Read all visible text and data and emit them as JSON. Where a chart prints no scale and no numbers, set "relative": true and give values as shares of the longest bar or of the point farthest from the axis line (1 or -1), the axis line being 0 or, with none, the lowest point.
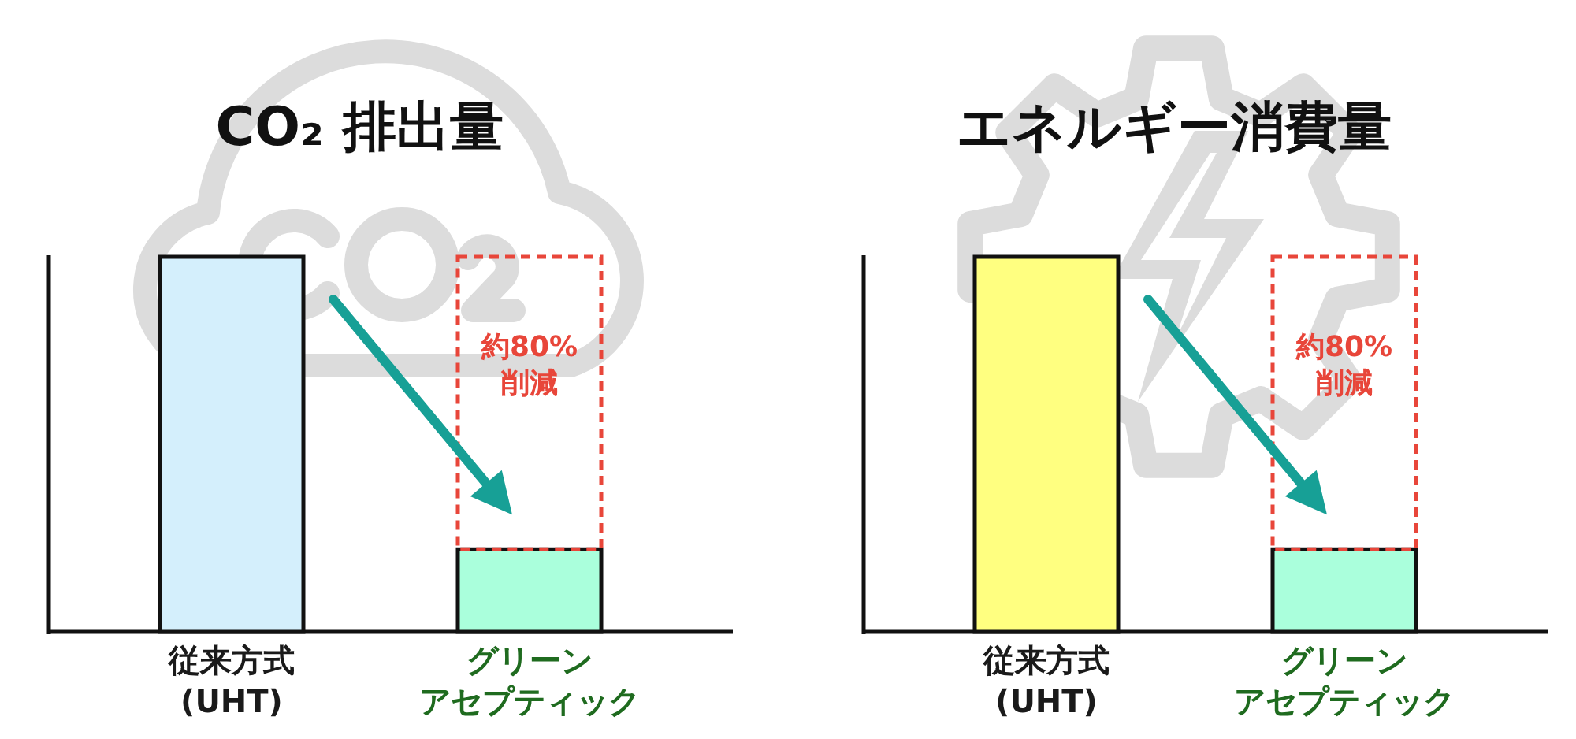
{
  "chart_data": [
    {
      "type": "bar",
      "title": "CO₂ 排出量",
      "categories": [
        "従来方式 (UHT)",
        "グリーンアセプティック"
      ],
      "values": [
        1,
        0.22
      ],
      "colors": [
        "#d4effc",
        "#aaffdc"
      ],
      "relative": true,
      "annotations": [
        "約80%\n削減"
      ]
    },
    {
      "type": "bar",
      "title": "エネルギー消費量",
      "categories": [
        "従来方式 (UHT)",
        "グリーンアセプティック"
      ],
      "values": [
        1,
        0.22
      ],
      "colors": [
        "#ffff80",
        "#aaffdc"
      ],
      "relative": true,
      "annotations": [
        "約80%\n削減"
      ]
    }
  ]
}
